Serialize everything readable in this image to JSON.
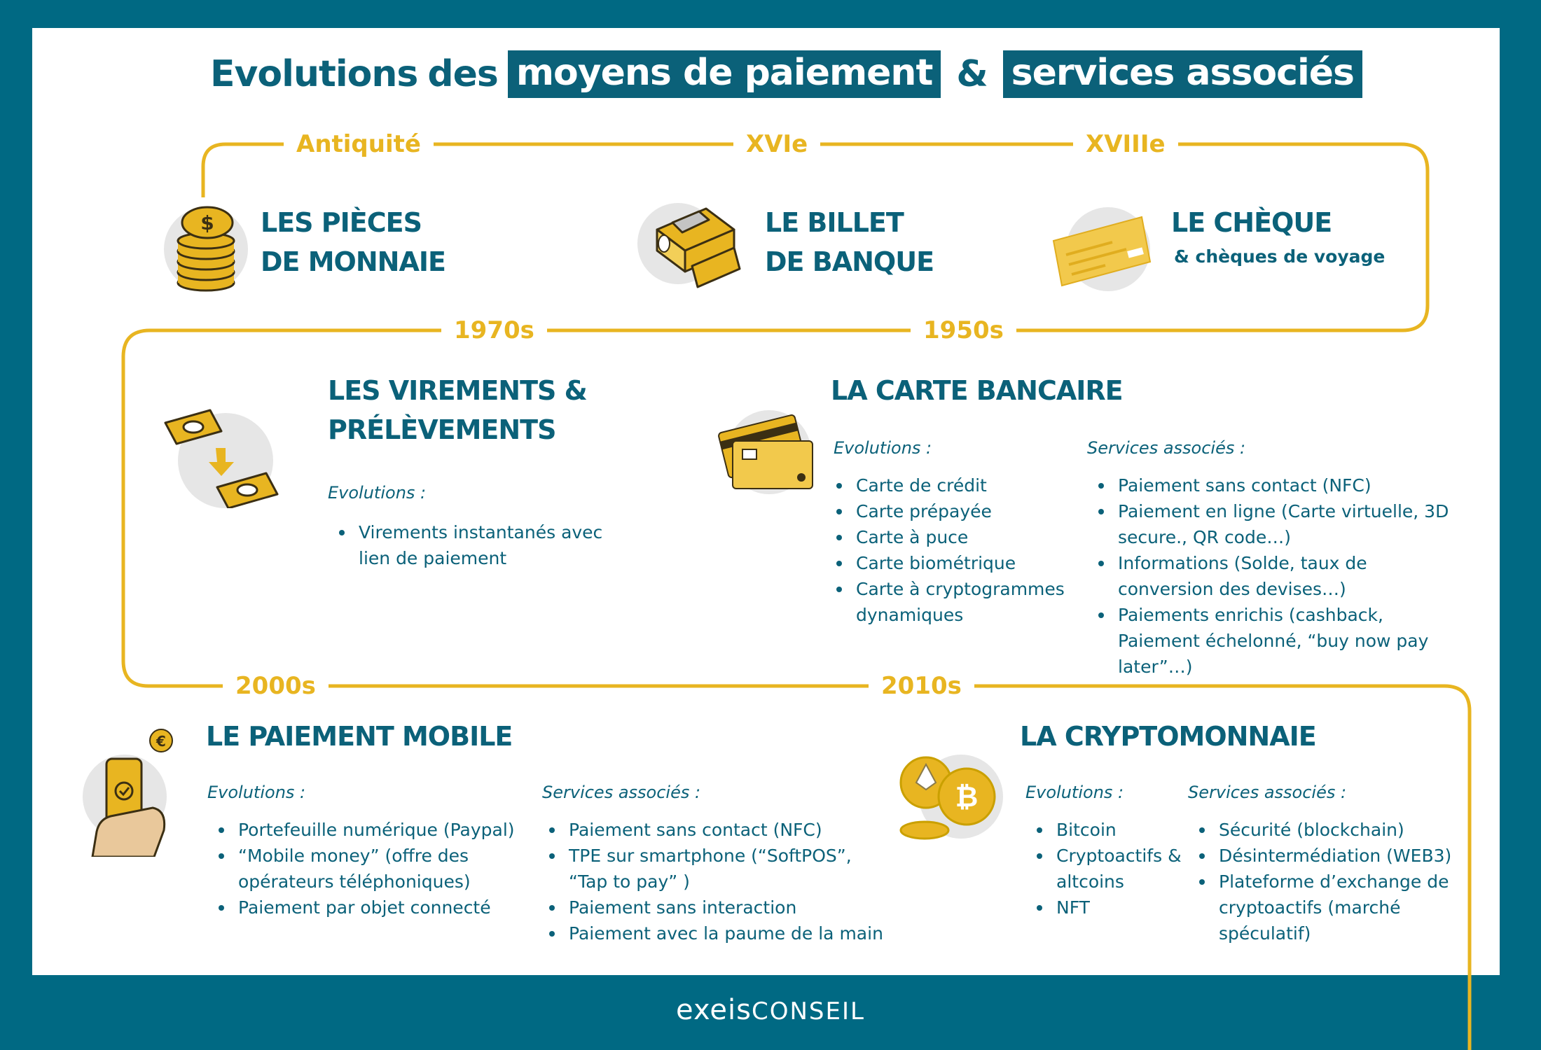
{
  "title": {
    "part1": "Evolutions",
    "part2": "des",
    "highlight1": "moyens de paiement",
    "ampersand": "&",
    "highlight2": "services associés"
  },
  "eras": {
    "antiquite": "Antiquité",
    "xvie": "XVIe",
    "xviiie": "XVIIIe",
    "y1970s": "1970s",
    "y1950s": "1950s",
    "y2000s": "2000s",
    "y2010s": "2010s"
  },
  "pieces": {
    "line1": "LES PIÈCES",
    "line2": "DE MONNAIE"
  },
  "billet": {
    "line1": "LE BILLET",
    "line2": "DE BANQUE"
  },
  "cheque": {
    "line1": "LE CHÈQUE",
    "sub": "& chèques de voyage"
  },
  "virements": {
    "line1": "LES VIREMENTS &",
    "line2": "PRÉLÈVEMENTS",
    "evolutions_label": "Evolutions :",
    "evolutions": [
      "Virements instantanés avec lien de paiement"
    ]
  },
  "carte": {
    "title": "LA CARTE BANCAIRE",
    "evolutions_label": "Evolutions :",
    "evolutions": [
      "Carte de crédit",
      "Carte prépayée",
      "Carte à puce",
      "Carte biométrique",
      "Carte à cryptogrammes dynamiques"
    ],
    "services_label": "Services associés :",
    "services": [
      "Paiement sans contact (NFC)",
      "Paiement en ligne (Carte virtuelle, 3D secure., QR code…)",
      "Informations (Solde, taux de conversion des devises…)",
      "Paiements enrichis (cashback, Paiement échelonné, “buy now pay later”…)"
    ]
  },
  "mobile": {
    "title": "LE PAIEMENT MOBILE",
    "evolutions_label": "Evolutions :",
    "evolutions": [
      "Portefeuille numérique (Paypal)",
      "“Mobile money” (offre des opérateurs téléphoniques)",
      "Paiement par objet connecté"
    ],
    "services_label": "Services associés :",
    "services": [
      "Paiement sans contact (NFC)",
      "TPE sur smartphone  (“SoftPOS”, “Tap to pay” )",
      "Paiement sans interaction",
      "Paiement avec la paume de la main"
    ]
  },
  "crypto": {
    "title": "LA CRYPTOMONNAIE",
    "evolutions_label": "Evolutions :",
    "evolutions": [
      "Bitcoin",
      "Cryptoactifs & altcoins",
      "NFT"
    ],
    "services_label": "Services associés :",
    "services": [
      "Sécurité (blockchain)",
      "Désintermédiation (WEB3)",
      "Plateforme d’exchange de cryptoactifs (marché spéculatif)"
    ]
  },
  "logo": {
    "bold": "exeis",
    "light": "CONSEIL"
  },
  "colors": {
    "teal": "#006983",
    "text": "#0b6179",
    "gold": "#e8b521",
    "grey": "#e6e6e6"
  }
}
